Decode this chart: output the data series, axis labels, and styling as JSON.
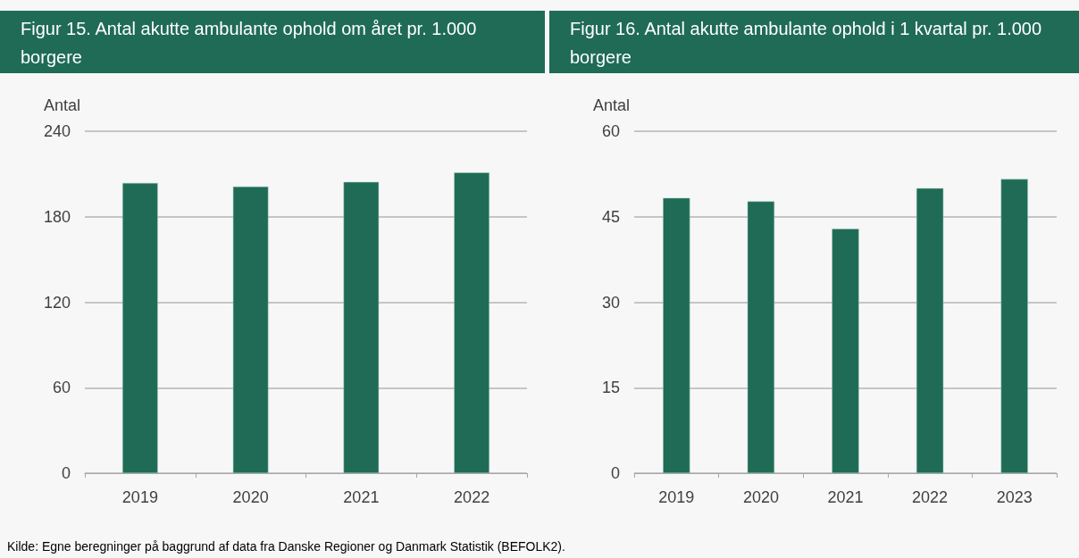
{
  "chart_data": [
    {
      "type": "bar",
      "title": "Figur 15. Antal akutte ambulante ophold om året pr. 1.000 borgere",
      "ylabel": "Antal",
      "categories": [
        "2019",
        "2020",
        "2021",
        "2022"
      ],
      "values": [
        203.7,
        201.2,
        204.4,
        211
      ],
      "color": "#1f6b56",
      "ylim": [
        0,
        240
      ],
      "yticks": [
        0,
        60,
        120,
        180,
        240
      ],
      "grid": "y",
      "annotations": [
        "Kilde: Egne beregninger på baggrund af data fra Danske Regioner og Danmark Statistik (BEFOLK2)."
      ]
    },
    {
      "type": "bar",
      "title": "Figur 16. Antal akutte ambulante ophold i 1 kvartal pr. 1.000 borgere",
      "ylabel": "Antal",
      "categories": [
        "2019",
        "2020",
        "2021",
        "2022",
        "2023"
      ],
      "values": [
        48.3,
        47.7,
        42.9,
        50.0,
        51.6
      ],
      "color": "#1f6b56",
      "ylim": [
        0,
        60
      ],
      "yticks": [
        0,
        15,
        30,
        45,
        60
      ],
      "grid": "y"
    }
  ]
}
